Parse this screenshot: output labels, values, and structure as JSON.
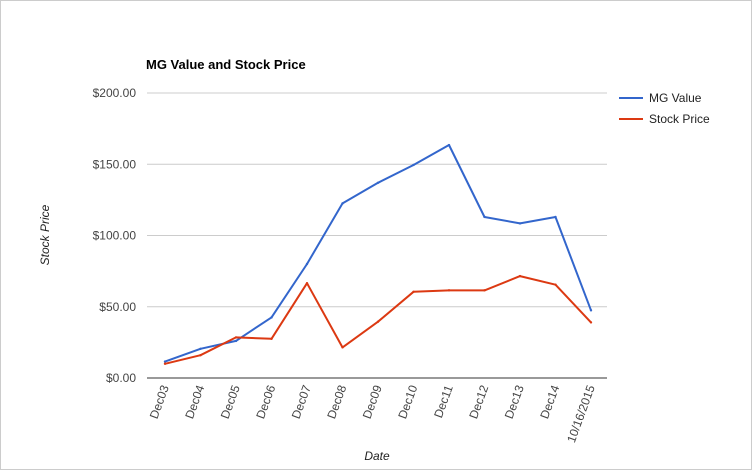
{
  "chart_data": {
    "type": "line",
    "title": "MG Value and Stock Price",
    "xlabel": "Date",
    "ylabel": "Stock Price",
    "categories": [
      "Dec03",
      "Dec04",
      "Dec05",
      "Dec06",
      "Dec07",
      "Dec08",
      "Dec09",
      "Dec10",
      "Dec11",
      "Dec12",
      "Dec13",
      "Dec14",
      "10/16/2015"
    ],
    "ylim": [
      0,
      200
    ],
    "yticks": [
      0,
      50,
      100,
      150,
      200
    ],
    "ytick_labels": [
      "$0.00",
      "$50.00",
      "$100.00",
      "$150.00",
      "$200.00"
    ],
    "grid": true,
    "legend_position": "right",
    "series": [
      {
        "name": "MG Value",
        "color": "#3366cc",
        "values": [
          11.5,
          20.5,
          26,
          42.5,
          80,
          122.5,
          137,
          149.5,
          163.5,
          113,
          108.5,
          113,
          47.5
        ]
      },
      {
        "name": "Stock Price",
        "color": "#dc3912",
        "values": [
          10,
          16,
          28.5,
          27.5,
          66.5,
          21.5,
          39.5,
          60.5,
          61.5,
          61.5,
          71.5,
          65.5,
          39
        ]
      }
    ]
  }
}
